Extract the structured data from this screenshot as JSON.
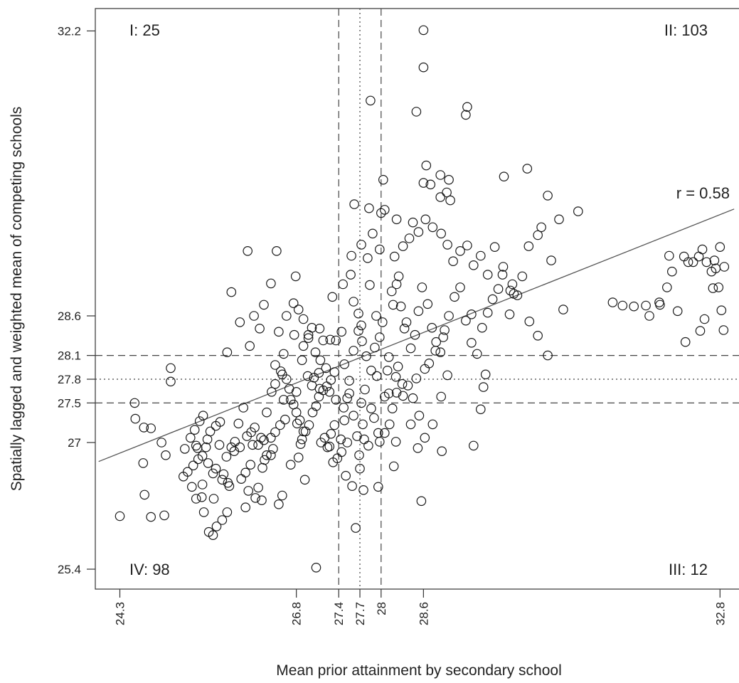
{
  "chart_data": {
    "type": "scatter",
    "title": "",
    "xlabel": "Mean prior attainment by secondary school",
    "ylabel": "Spatially lagged and weighted mean of competing schools",
    "xlim": [
      24.3,
      32.8
    ],
    "ylim": [
      25.4,
      32.2
    ],
    "x_ticks": [
      "24.3",
      "26.8",
      "27.4",
      "27.7",
      "28",
      "28.6",
      "32.8"
    ],
    "y_ticks": [
      "25.4",
      "27",
      "27.5",
      "27.8",
      "28.1",
      "28.6",
      "32.2"
    ],
    "grid": false,
    "correlation_label": "r =  0.58",
    "quadrant_labels": [
      {
        "id": "I",
        "text": "I:  25",
        "corner": "top-left"
      },
      {
        "id": "II",
        "text": "II:  103",
        "corner": "top-right"
      },
      {
        "id": "III",
        "text": "III:  12",
        "corner": "bottom-right"
      },
      {
        "id": "IV",
        "text": "IV:  98",
        "corner": "bottom-left"
      }
    ],
    "vertical_lines": [
      {
        "x": 27.4,
        "style": "dashed"
      },
      {
        "x": 27.7,
        "style": "dotted"
      },
      {
        "x": 28.0,
        "style": "dashed"
      }
    ],
    "horizontal_lines": [
      {
        "y": 28.1,
        "style": "dashed"
      },
      {
        "y": 27.8,
        "style": "dotted"
      },
      {
        "y": 27.5,
        "style": "dashed"
      }
    ],
    "regression_line": {
      "x": [
        24.0,
        33.0
      ],
      "y": [
        26.76,
        29.95
      ]
    },
    "points": [
      [
        24.3,
        26.07
      ],
      [
        24.65,
        26.34
      ],
      [
        24.74,
        26.06
      ],
      [
        24.93,
        26.08
      ],
      [
        24.63,
        26.74
      ],
      [
        24.64,
        27.19
      ],
      [
        24.89,
        27.0
      ],
      [
        25.02,
        27.77
      ],
      [
        25.02,
        27.94
      ],
      [
        25.2,
        26.57
      ],
      [
        25.26,
        26.63
      ],
      [
        25.32,
        26.44
      ],
      [
        25.46,
        26.31
      ],
      [
        25.49,
        26.12
      ],
      [
        25.56,
        25.87
      ],
      [
        25.62,
        25.83
      ],
      [
        25.38,
        26.29
      ],
      [
        25.47,
        26.47
      ],
      [
        25.34,
        26.71
      ],
      [
        25.41,
        26.79
      ],
      [
        25.47,
        26.83
      ],
      [
        25.52,
        26.94
      ],
      [
        25.54,
        27.04
      ],
      [
        25.58,
        27.14
      ],
      [
        25.66,
        27.21
      ],
      [
        25.72,
        27.26
      ],
      [
        25.38,
        26.96
      ],
      [
        25.36,
        27.16
      ],
      [
        25.43,
        27.27
      ],
      [
        25.48,
        27.34
      ],
      [
        25.71,
        26.97
      ],
      [
        25.77,
        26.6
      ],
      [
        25.63,
        26.29
      ],
      [
        25.66,
        26.67
      ],
      [
        25.81,
        26.82
      ],
      [
        25.88,
        26.94
      ],
      [
        25.93,
        27.01
      ],
      [
        25.67,
        25.94
      ],
      [
        25.83,
        26.49
      ],
      [
        26.02,
        26.54
      ],
      [
        26.08,
        26.62
      ],
      [
        26.12,
        26.39
      ],
      [
        26.15,
        26.72
      ],
      [
        26.22,
        26.3
      ],
      [
        26.26,
        26.43
      ],
      [
        26.31,
        26.27
      ],
      [
        26.32,
        26.68
      ],
      [
        26.35,
        26.78
      ],
      [
        26.38,
        26.84
      ],
      [
        25.92,
        26.89
      ],
      [
        26.0,
        26.94
      ],
      [
        25.98,
        27.24
      ],
      [
        26.05,
        27.44
      ],
      [
        26.1,
        27.08
      ],
      [
        26.16,
        27.13
      ],
      [
        26.21,
        27.19
      ],
      [
        26.26,
        26.97
      ],
      [
        26.3,
        27.06
      ],
      [
        25.75,
        26.02
      ],
      [
        25.82,
        26.12
      ],
      [
        26.08,
        26.18
      ],
      [
        26.44,
        26.84
      ],
      [
        26.47,
        26.92
      ],
      [
        26.55,
        26.22
      ],
      [
        26.6,
        26.33
      ],
      [
        26.72,
        26.72
      ],
      [
        26.83,
        26.81
      ],
      [
        26.92,
        26.53
      ],
      [
        26.45,
        27.64
      ],
      [
        26.5,
        27.74
      ],
      [
        26.38,
        27.38
      ],
      [
        26.62,
        27.54
      ],
      [
        26.7,
        27.68
      ],
      [
        26.76,
        27.48
      ],
      [
        26.81,
        27.24
      ],
      [
        26.86,
        26.98
      ],
      [
        26.88,
        27.04
      ],
      [
        26.93,
        27.14
      ],
      [
        26.98,
        27.22
      ],
      [
        27.03,
        27.38
      ],
      [
        27.08,
        27.46
      ],
      [
        27.12,
        27.58
      ],
      [
        27.18,
        27.66
      ],
      [
        27.23,
        27.71
      ],
      [
        27.29,
        27.79
      ],
      [
        27.34,
        27.89
      ],
      [
        27.05,
        27.82
      ],
      [
        27.12,
        27.88
      ],
      [
        27.22,
        27.94
      ],
      [
        27.15,
        27.0
      ],
      [
        27.2,
        27.06
      ],
      [
        27.27,
        26.95
      ],
      [
        27.32,
        26.75
      ],
      [
        27.38,
        26.8
      ],
      [
        27.43,
        27.04
      ],
      [
        27.44,
        26.88
      ],
      [
        27.48,
        27.28
      ],
      [
        27.52,
        27.56
      ],
      [
        27.55,
        27.78
      ],
      [
        27.61,
        27.34
      ],
      [
        27.66,
        27.08
      ],
      [
        27.69,
        26.84
      ],
      [
        27.74,
        27.23
      ],
      [
        27.77,
        27.67
      ],
      [
        27.82,
        26.96
      ],
      [
        27.86,
        27.43
      ],
      [
        27.9,
        27.31
      ],
      [
        27.96,
        27.12
      ],
      [
        27.98,
        27.01
      ],
      [
        27.94,
        27.84
      ],
      [
        26.58,
        27.9
      ],
      [
        26.8,
        27.64
      ],
      [
        26.96,
        27.84
      ],
      [
        27.14,
        28.04
      ],
      [
        27.18,
        28.29
      ],
      [
        27.36,
        28.29
      ],
      [
        27.48,
        27.99
      ],
      [
        27.61,
        28.16
      ],
      [
        27.68,
        28.41
      ],
      [
        27.73,
        28.28
      ],
      [
        27.79,
        28.09
      ],
      [
        27.86,
        27.91
      ],
      [
        27.91,
        28.2
      ],
      [
        27.98,
        28.33
      ],
      [
        27.93,
        28.6
      ],
      [
        27.84,
        28.99
      ],
      [
        27.72,
        29.5
      ],
      [
        27.57,
        29.12
      ],
      [
        27.81,
        29.33
      ],
      [
        27.98,
        29.44
      ],
      [
        28.15,
        28.91
      ],
      [
        28.25,
        29.1
      ],
      [
        28.28,
        28.72
      ],
      [
        28.36,
        28.52
      ],
      [
        28.42,
        28.19
      ],
      [
        28.48,
        28.36
      ],
      [
        28.53,
        28.66
      ],
      [
        28.58,
        28.96
      ],
      [
        28.66,
        28.75
      ],
      [
        28.72,
        28.45
      ],
      [
        28.78,
        28.27
      ],
      [
        28.84,
        28.14
      ],
      [
        28.9,
        28.42
      ],
      [
        28.96,
        28.6
      ],
      [
        29.04,
        28.84
      ],
      [
        29.12,
        28.96
      ],
      [
        29.2,
        28.54
      ],
      [
        29.28,
        28.26
      ],
      [
        29.36,
        28.12
      ],
      [
        29.43,
        28.45
      ],
      [
        29.51,
        28.64
      ],
      [
        29.58,
        28.81
      ],
      [
        29.66,
        28.94
      ],
      [
        29.72,
        29.12
      ],
      [
        29.82,
        28.62
      ],
      [
        29.88,
        28.88
      ],
      [
        30.0,
        29.1
      ],
      [
        30.1,
        28.53
      ],
      [
        30.22,
        28.35
      ],
      [
        30.36,
        28.1
      ],
      [
        30.41,
        29.3
      ],
      [
        30.58,
        28.68
      ],
      [
        29.48,
        27.86
      ],
      [
        29.45,
        27.7
      ],
      [
        29.41,
        27.42
      ],
      [
        29.28,
        28.62
      ],
      [
        28.94,
        27.85
      ],
      [
        28.85,
        27.58
      ],
      [
        28.73,
        27.23
      ],
      [
        28.62,
        27.06
      ],
      [
        28.52,
        26.93
      ],
      [
        28.45,
        27.56
      ],
      [
        28.38,
        27.72
      ],
      [
        28.22,
        27.63
      ],
      [
        28.16,
        27.43
      ],
      [
        28.12,
        27.23
      ],
      [
        28.05,
        27.12
      ],
      [
        28.09,
        27.91
      ],
      [
        28.21,
        27.83
      ],
      [
        28.3,
        27.74
      ],
      [
        28.5,
        27.81
      ],
      [
        28.54,
        27.34
      ],
      [
        28.62,
        27.93
      ],
      [
        28.68,
        28.0
      ],
      [
        28.77,
        28.16
      ],
      [
        28.88,
        28.33
      ],
      [
        28.02,
        28.52
      ],
      [
        28.11,
        28.08
      ],
      [
        28.24,
        27.96
      ],
      [
        28.33,
        28.44
      ],
      [
        28.17,
        28.74
      ],
      [
        28.22,
        29.0
      ],
      [
        28.19,
        29.35
      ],
      [
        28.31,
        29.48
      ],
      [
        28.4,
        29.58
      ],
      [
        28.53,
        29.66
      ],
      [
        28.63,
        29.82
      ],
      [
        28.73,
        29.72
      ],
      [
        28.85,
        29.64
      ],
      [
        28.94,
        29.5
      ],
      [
        29.02,
        29.29
      ],
      [
        29.12,
        29.42
      ],
      [
        29.22,
        29.49
      ],
      [
        29.31,
        29.24
      ],
      [
        29.41,
        29.36
      ],
      [
        29.51,
        29.12
      ],
      [
        29.61,
        29.47
      ],
      [
        29.73,
        29.22
      ],
      [
        29.86,
        29.0
      ],
      [
        30.09,
        29.48
      ],
      [
        30.22,
        29.62
      ],
      [
        30.27,
        29.72
      ],
      [
        30.52,
        29.82
      ],
      [
        30.79,
        29.92
      ],
      [
        28.84,
        30.1
      ],
      [
        28.93,
        30.16
      ],
      [
        28.98,
        30.06
      ],
      [
        28.6,
        30.28
      ],
      [
        28.64,
        30.5
      ],
      [
        28.5,
        31.18
      ],
      [
        28.7,
        30.26
      ],
      [
        28.84,
        30.38
      ],
      [
        28.96,
        30.32
      ],
      [
        29.22,
        31.24
      ],
      [
        29.74,
        30.36
      ],
      [
        30.07,
        30.46
      ],
      [
        30.36,
        30.12
      ],
      [
        28.03,
        30.32
      ],
      [
        27.88,
        29.64
      ],
      [
        27.83,
        29.96
      ],
      [
        28.0,
        29.9
      ],
      [
        28.05,
        29.94
      ],
      [
        28.45,
        29.78
      ],
      [
        28.22,
        29.82
      ],
      [
        27.62,
        30.01
      ],
      [
        27.85,
        31.32
      ],
      [
        28.6,
        31.74
      ],
      [
        28.6,
        32.21
      ],
      [
        29.2,
        31.14
      ],
      [
        26.88,
        28.04
      ],
      [
        26.9,
        28.22
      ],
      [
        26.97,
        28.32
      ],
      [
        27.02,
        28.45
      ],
      [
        26.62,
        28.12
      ],
      [
        26.77,
        28.36
      ],
      [
        26.34,
        28.74
      ],
      [
        26.44,
        29.01
      ],
      [
        26.55,
        28.4
      ],
      [
        26.66,
        28.6
      ],
      [
        26.76,
        28.76
      ],
      [
        26.83,
        28.68
      ],
      [
        27.28,
        28.3
      ],
      [
        27.44,
        28.4
      ],
      [
        26.11,
        29.42
      ],
      [
        26.52,
        29.42
      ],
      [
        26.79,
        29.1
      ],
      [
        27.58,
        29.36
      ],
      [
        26.9,
        28.56
      ],
      [
        26.97,
        28.36
      ],
      [
        27.07,
        28.14
      ],
      [
        27.13,
        28.44
      ],
      [
        27.31,
        28.84
      ],
      [
        27.46,
        29.0
      ],
      [
        27.61,
        28.78
      ],
      [
        27.68,
        28.63
      ],
      [
        27.72,
        28.48
      ],
      [
        26.5,
        27.98
      ],
      [
        26.6,
        27.86
      ],
      [
        26.66,
        27.8
      ],
      [
        26.72,
        27.54
      ],
      [
        26.8,
        27.38
      ],
      [
        26.85,
        27.28
      ],
      [
        26.9,
        27.14
      ],
      [
        25.82,
        28.14
      ],
      [
        26.2,
        28.6
      ],
      [
        26.28,
        28.44
      ],
      [
        25.88,
        28.9
      ],
      [
        26.0,
        28.52
      ],
      [
        26.14,
        28.22
      ],
      [
        24.51,
        27.5
      ],
      [
        24.52,
        27.3
      ],
      [
        24.74,
        27.18
      ],
      [
        24.95,
        26.84
      ],
      [
        25.22,
        26.92
      ],
      [
        25.3,
        27.06
      ],
      [
        25.4,
        26.93
      ],
      [
        25.55,
        26.74
      ],
      [
        25.62,
        26.61
      ],
      [
        25.75,
        26.53
      ],
      [
        25.85,
        26.45
      ],
      [
        26.18,
        26.97
      ],
      [
        26.34,
        27.03
      ],
      [
        26.44,
        27.06
      ],
      [
        26.5,
        27.13
      ],
      [
        26.57,
        27.22
      ],
      [
        26.64,
        27.29
      ],
      [
        27.24,
        26.94
      ],
      [
        27.29,
        27.11
      ],
      [
        27.34,
        27.22
      ],
      [
        27.5,
        26.58
      ],
      [
        27.59,
        26.45
      ],
      [
        27.7,
        26.67
      ],
      [
        27.75,
        26.4
      ],
      [
        27.64,
        25.92
      ],
      [
        27.96,
        26.44
      ],
      [
        28.18,
        26.7
      ],
      [
        28.57,
        26.26
      ],
      [
        28.86,
        26.89
      ],
      [
        29.31,
        26.96
      ],
      [
        28.21,
        27.01
      ],
      [
        27.08,
        25.42
      ],
      [
        31.28,
        28.77
      ],
      [
        31.42,
        28.73
      ],
      [
        31.58,
        28.72
      ],
      [
        31.75,
        28.73
      ],
      [
        31.94,
        28.77
      ],
      [
        32.08,
        29.36
      ],
      [
        32.29,
        29.35
      ],
      [
        32.35,
        29.28
      ],
      [
        32.42,
        29.28
      ],
      [
        32.5,
        29.35
      ],
      [
        32.55,
        29.44
      ],
      [
        32.61,
        29.28
      ],
      [
        32.68,
        29.16
      ],
      [
        32.72,
        29.3
      ],
      [
        32.74,
        29.2
      ],
      [
        32.8,
        29.47
      ],
      [
        32.78,
        28.96
      ],
      [
        32.7,
        28.95
      ],
      [
        32.82,
        28.67
      ],
      [
        32.85,
        28.42
      ],
      [
        32.86,
        29.22
      ],
      [
        32.12,
        29.16
      ],
      [
        32.2,
        28.66
      ],
      [
        32.31,
        28.27
      ],
      [
        32.52,
        28.41
      ],
      [
        32.58,
        28.56
      ],
      [
        31.8,
        28.6
      ],
      [
        31.95,
        28.74
      ],
      [
        32.05,
        28.96
      ],
      [
        29.83,
        28.92
      ],
      [
        29.93,
        28.86
      ],
      [
        28.31,
        27.59
      ],
      [
        28.42,
        27.23
      ],
      [
        27.55,
        27.62
      ],
      [
        27.47,
        27.44
      ],
      [
        27.52,
        27.0
      ],
      [
        27.76,
        27.04
      ],
      [
        27.72,
        27.5
      ],
      [
        27.36,
        27.54
      ],
      [
        27.27,
        27.64
      ],
      [
        27.13,
        27.68
      ],
      [
        27.02,
        27.72
      ],
      [
        28.05,
        27.58
      ],
      [
        28.11,
        27.62
      ]
    ]
  }
}
